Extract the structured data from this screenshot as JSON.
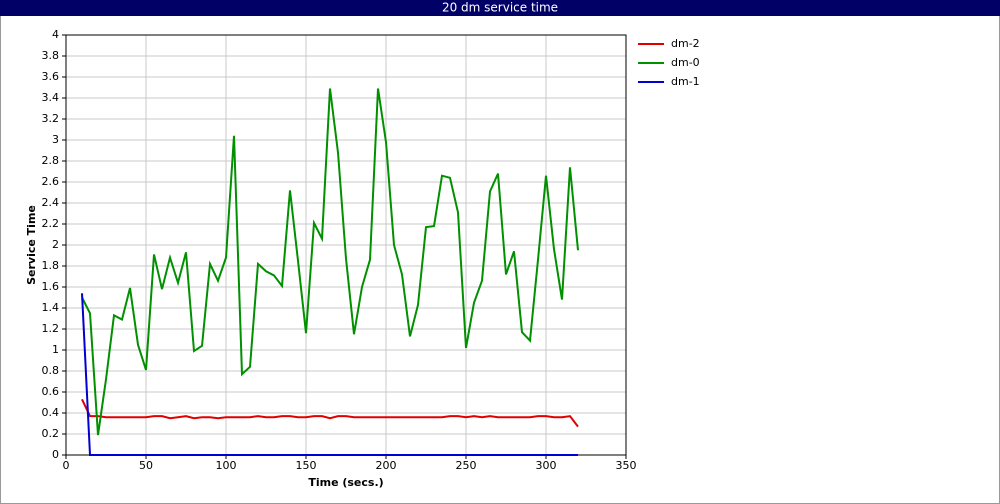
{
  "chart_data": {
    "type": "line",
    "title": "20 dm service time",
    "x_label": "Time (secs.)",
    "y_label": "Service Time",
    "x": [
      10,
      15,
      20,
      25,
      30,
      35,
      40,
      45,
      50,
      55,
      60,
      65,
      70,
      75,
      80,
      85,
      90,
      95,
      100,
      105,
      110,
      115,
      120,
      125,
      130,
      135,
      140,
      145,
      150,
      155,
      160,
      165,
      170,
      175,
      180,
      185,
      190,
      195,
      200,
      205,
      210,
      215,
      220,
      225,
      230,
      235,
      240,
      245,
      250,
      255,
      260,
      265,
      270,
      275,
      280,
      285,
      290,
      295,
      300,
      305,
      310,
      315,
      320
    ],
    "series": [
      {
        "name": "dm-2",
        "color": "#e00000",
        "values": [
          0.53,
          0.37,
          0.37,
          0.36,
          0.36,
          0.36,
          0.36,
          0.36,
          0.36,
          0.37,
          0.37,
          0.35,
          0.36,
          0.37,
          0.35,
          0.36,
          0.36,
          0.35,
          0.36,
          0.36,
          0.36,
          0.36,
          0.37,
          0.36,
          0.36,
          0.37,
          0.37,
          0.36,
          0.36,
          0.37,
          0.37,
          0.35,
          0.37,
          0.37,
          0.36,
          0.36,
          0.36,
          0.36,
          0.36,
          0.36,
          0.36,
          0.36,
          0.36,
          0.36,
          0.36,
          0.36,
          0.37,
          0.37,
          0.36,
          0.37,
          0.36,
          0.37,
          0.36,
          0.36,
          0.36,
          0.36,
          0.36,
          0.37,
          0.37,
          0.36,
          0.36,
          0.37,
          0.27
        ]
      },
      {
        "name": "dm-0",
        "color": "#009000",
        "values": [
          1.5,
          1.35,
          0.19,
          0.72,
          1.33,
          1.29,
          1.59,
          1.05,
          0.81,
          1.91,
          1.58,
          1.88,
          1.64,
          1.93,
          0.99,
          1.04,
          1.82,
          1.66,
          1.88,
          3.04,
          0.77,
          0.84,
          1.82,
          1.75,
          1.71,
          1.61,
          2.52,
          1.85,
          1.16,
          2.21,
          2.06,
          3.49,
          2.88,
          1.87,
          1.15,
          1.6,
          1.86,
          3.49,
          2.98,
          2.0,
          1.72,
          1.13,
          1.43,
          2.17,
          2.18,
          2.66,
          2.64,
          2.31,
          1.02,
          1.45,
          1.66,
          2.51,
          2.68,
          1.72,
          1.94,
          1.17,
          1.09,
          1.86,
          2.66,
          1.96,
          1.48,
          2.74,
          1.95
        ]
      },
      {
        "name": "dm-1",
        "color": "#0000d0",
        "values": [
          1.54,
          0,
          0,
          0,
          0,
          0,
          0,
          0,
          0,
          0,
          0,
          0,
          0,
          0,
          0,
          0,
          0,
          0,
          0,
          0,
          0,
          0,
          0,
          0,
          0,
          0,
          0,
          0,
          0,
          0,
          0,
          0,
          0,
          0,
          0,
          0,
          0,
          0,
          0,
          0,
          0,
          0,
          0,
          0,
          0,
          0,
          0,
          0,
          0,
          0,
          0,
          0,
          0,
          0,
          0,
          0,
          0,
          0,
          0,
          0,
          0,
          0,
          0
        ]
      }
    ],
    "xlim": [
      0,
      350
    ],
    "ylim": [
      0,
      4
    ],
    "xticks": [
      0,
      50,
      100,
      150,
      200,
      250,
      300,
      350
    ],
    "yticks": [
      0,
      0.2,
      0.4,
      0.6,
      0.8,
      1,
      1.2,
      1.4,
      1.6,
      1.8,
      2,
      2.2,
      2.4,
      2.6,
      2.8,
      3,
      3.2,
      3.4,
      3.6,
      3.8,
      4
    ],
    "grid": true
  }
}
